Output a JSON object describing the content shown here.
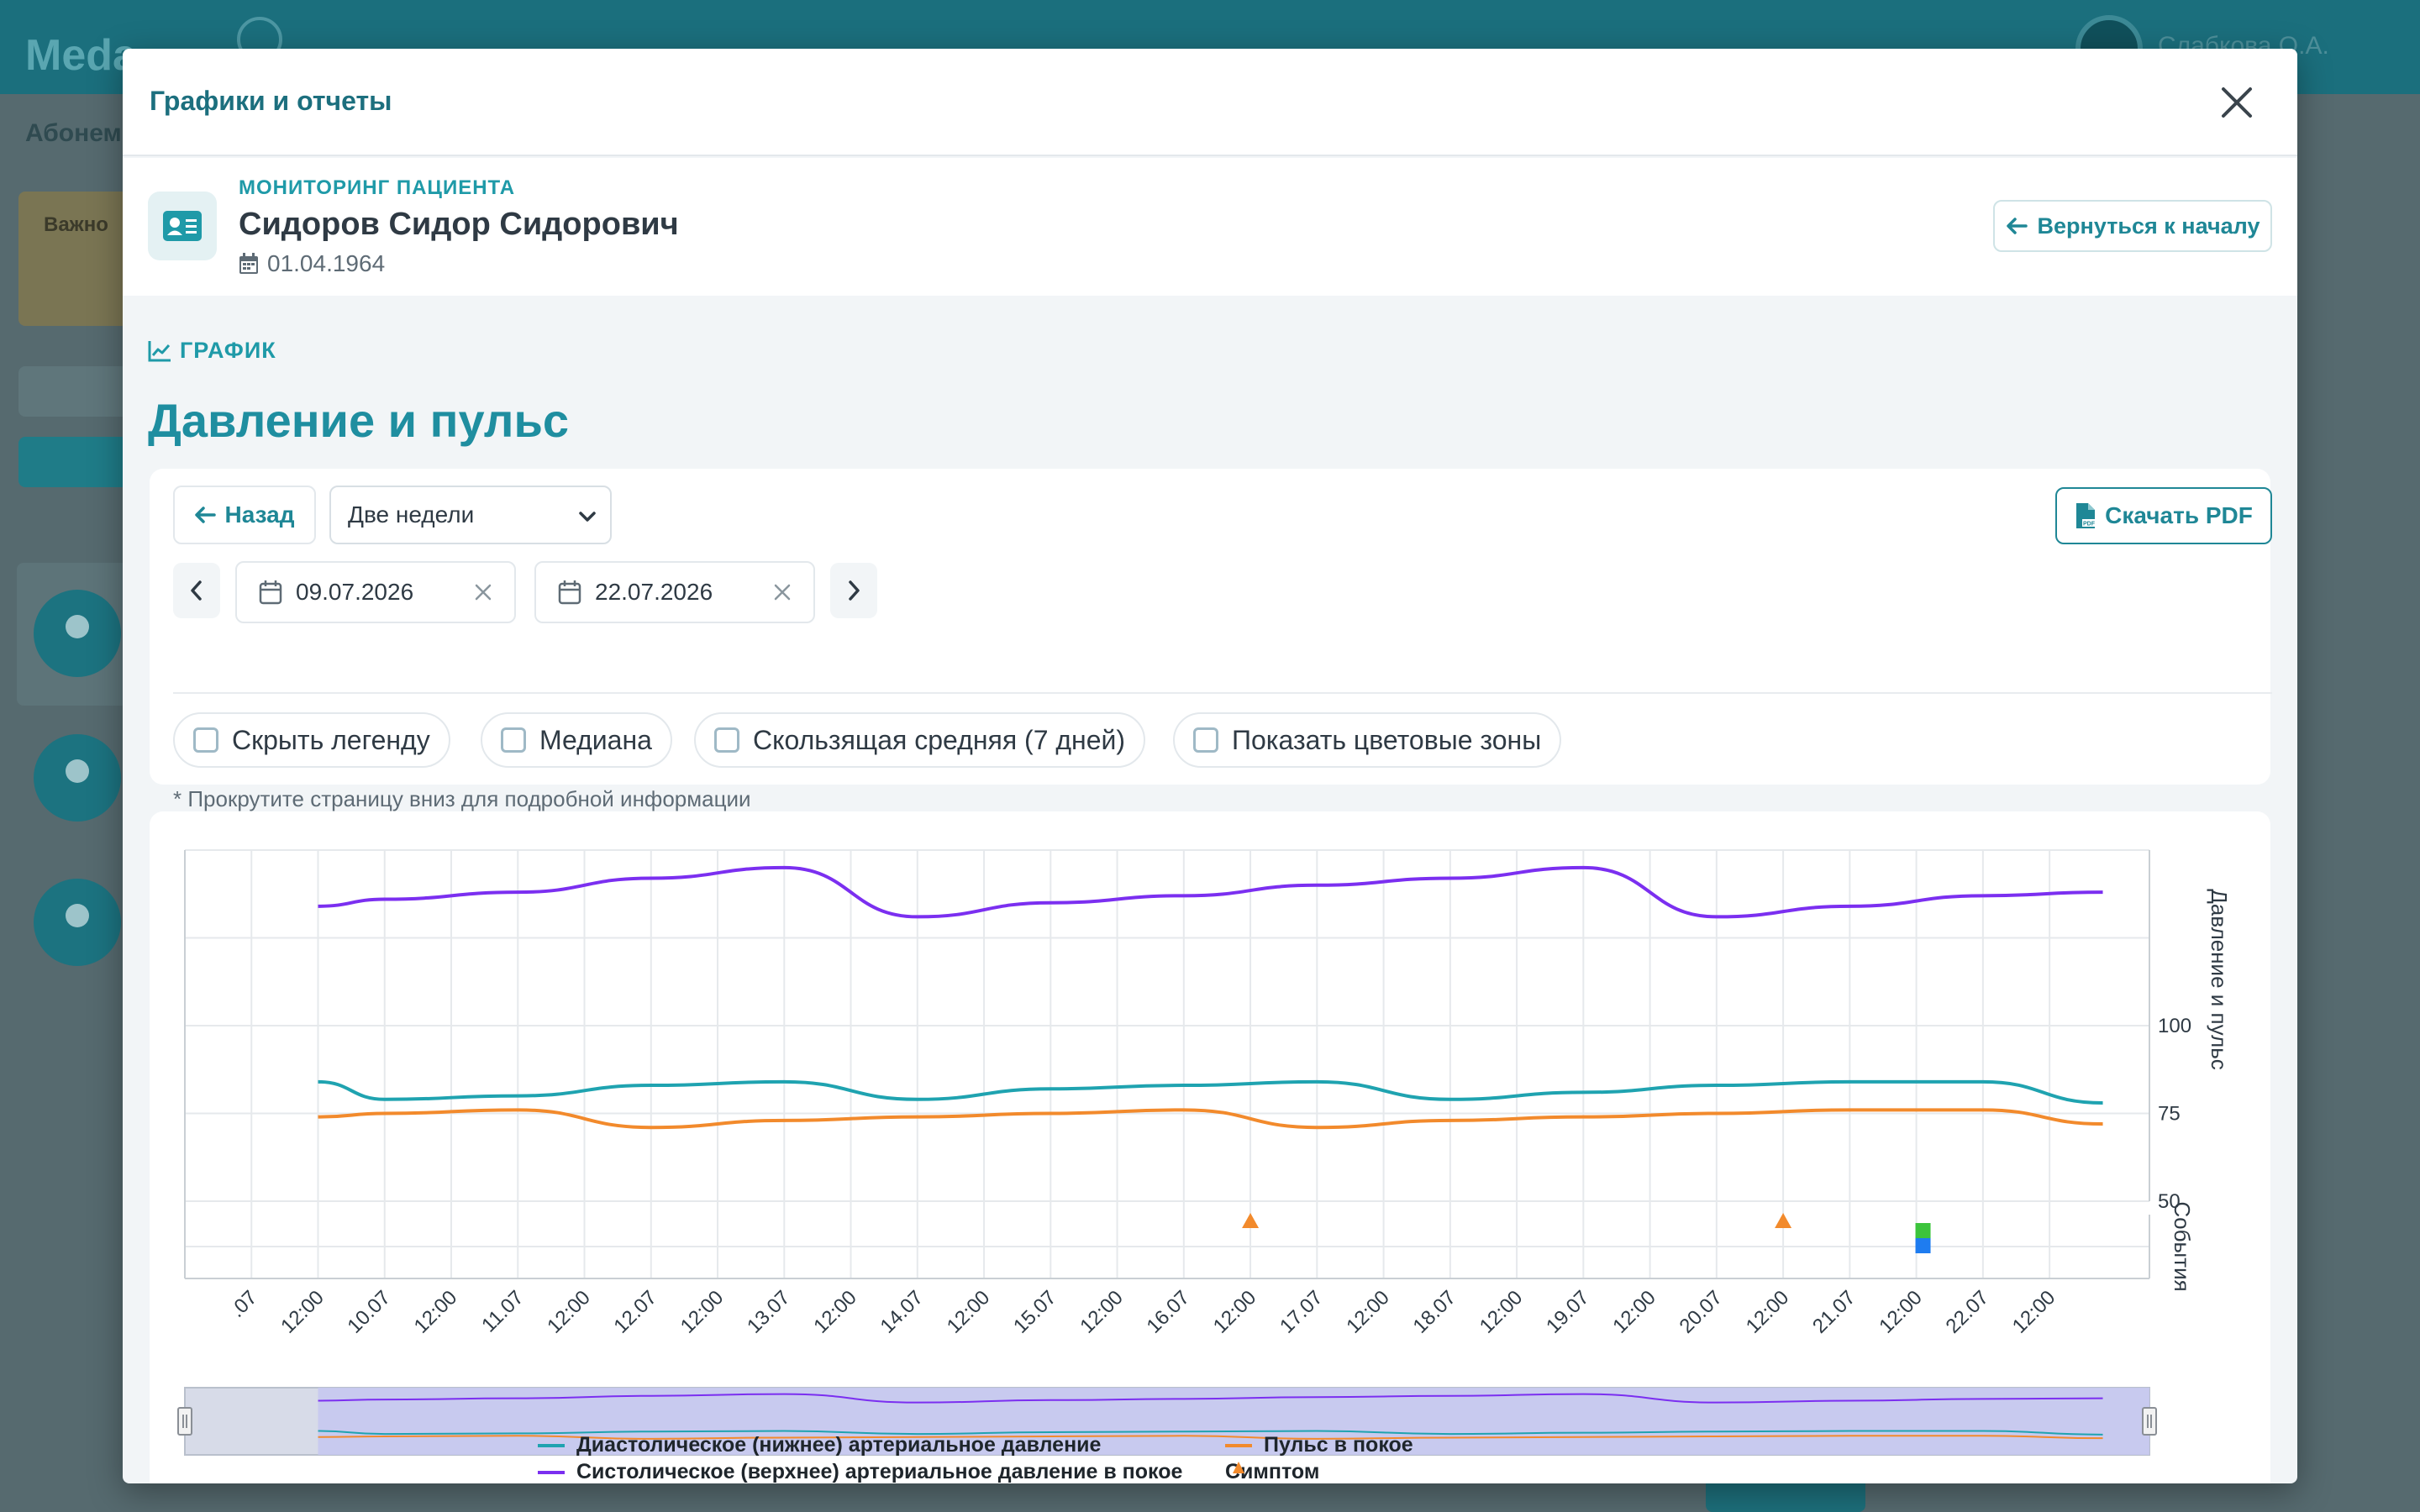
{
  "background": {
    "logo": "Meda",
    "user_name": "Слабкова О.А.",
    "sub_nav": "Абонем",
    "warning": "Важно"
  },
  "modal": {
    "title": "Графики и отчеты",
    "patient": {
      "kicker": "МОНИТОРИНГ ПАЦИЕНТА",
      "name": "Сидоров Сидор Сидорович",
      "dob": "01.04.1964",
      "back_to_start": "Вернуться к началу"
    },
    "section_kicker": "ГРАФИК",
    "section_title": "Давление и пульс",
    "controls": {
      "back": "Назад",
      "period": "Две недели",
      "download_pdf": "Скачать PDF",
      "date_from": "09.07.2026",
      "date_to": "22.07.2026",
      "options": [
        {
          "label": "Скрыть легенду",
          "checked": false
        },
        {
          "label": "Медиана",
          "checked": false
        },
        {
          "label": "Скользящая средняя (7 дней)",
          "checked": false
        },
        {
          "label": "Показать цветовые зоны",
          "checked": false
        }
      ],
      "hint": "* Прокрутите страницу вниз для подробной информации"
    }
  },
  "chart_data": {
    "type": "line",
    "y_axis_title": "Давление и пульс",
    "events_axis_title": "События",
    "y_ticks": [
      50,
      75,
      100
    ],
    "ylim": [
      50,
      150
    ],
    "x_tick_labels": [
      ".07",
      "12:00",
      "10.07",
      "12:00",
      "11.07",
      "12:00",
      "12.07",
      "12:00",
      "13.07",
      "12:00",
      "14.07",
      "12:00",
      "15.07",
      "12:00",
      "16.07",
      "12:00",
      "17.07",
      "12:00",
      "18.07",
      "12:00",
      "19.07",
      "12:00",
      "20.07",
      "12:00",
      "21.07",
      "12:00",
      "22.07",
      "12:00"
    ],
    "x_days": [
      9.5,
      10,
      11,
      12,
      13,
      14,
      15,
      16,
      17,
      18,
      19,
      20,
      21,
      22,
      22.9
    ],
    "series": [
      {
        "name": "Диастолическое (нижнее) артериальное давление",
        "color": "#1fa3b0",
        "values": [
          84,
          79,
          80,
          83,
          84,
          79,
          82,
          83,
          84,
          79,
          81,
          83,
          84,
          84,
          78
        ]
      },
      {
        "name": "Систолическое (верхнее) артериальное давление в покое",
        "color": "#7b2ff0",
        "values": [
          134,
          136,
          138,
          142,
          145,
          131,
          135,
          137,
          140,
          142,
          145,
          131,
          134,
          137,
          138
        ]
      },
      {
        "name": "Пульс в покое",
        "color": "#f28a2c",
        "values": [
          74,
          75,
          76,
          71,
          73,
          74,
          75,
          76,
          71,
          73,
          74,
          75,
          76,
          76,
          72
        ]
      }
    ],
    "events": [
      {
        "type": "Симптом",
        "x_day": 16.5,
        "color": "#f28a2c"
      },
      {
        "type": "Симптом",
        "x_day": 20.5,
        "color": "#f28a2c"
      },
      {
        "type": "marker",
        "x_day": 21.55,
        "colors": [
          "#3cc43c",
          "#1e7cf0"
        ]
      }
    ],
    "legend": [
      "Диастолическое (нижнее) артериальное давление",
      "Пульс в покое",
      "Систолическое (верхнее) артериальное давление в покое",
      "Симптом"
    ],
    "legend_position": "bottom",
    "grid": true
  }
}
